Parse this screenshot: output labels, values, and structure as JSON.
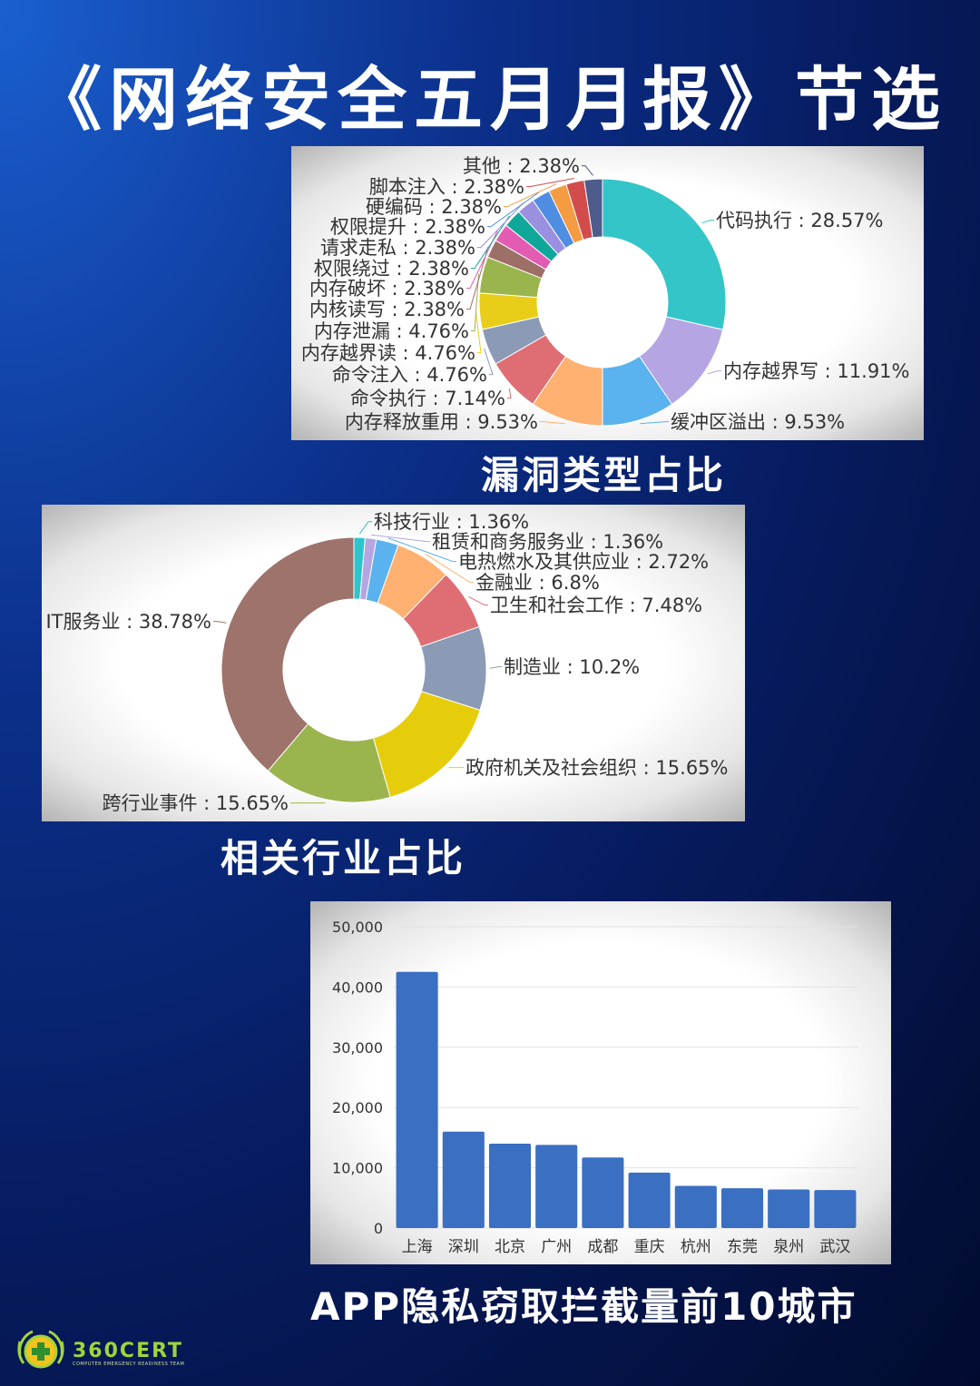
{
  "page": {
    "title": "《网络安全五月月报》节选"
  },
  "captions": {
    "vuln": "漏洞类型占比",
    "industry": "相关行业占比",
    "cities": "APP隐私窃取拦截量前10城市"
  },
  "logo": {
    "text": "360CERT",
    "sub": "COMPUTER EMERGENCY READINESS TEAM"
  },
  "chart_data": [
    {
      "type": "pie",
      "variant": "donut",
      "title": "漏洞类型占比",
      "slices": [
        {
          "label": "代码执行",
          "value": 28.57,
          "text": "代码执行 : 28.57%",
          "color": "#33c5c8"
        },
        {
          "label": "内存越界写",
          "value": 11.91,
          "text": "内存越界写 : 11.91%",
          "color": "#b6a5e3"
        },
        {
          "label": "缓冲区溢出",
          "value": 9.53,
          "text": "缓冲区溢出 : 9.53%",
          "color": "#5ab2ee"
        },
        {
          "label": "内存释放重用",
          "value": 9.53,
          "text": "内存释放重用 : 9.53%",
          "color": "#ffb172"
        },
        {
          "label": "命令执行",
          "value": 7.14,
          "text": "命令执行 : 7.14%",
          "color": "#df6e74"
        },
        {
          "label": "命令注入",
          "value": 4.76,
          "text": "命令注入 : 4.76%",
          "color": "#8b9ab5"
        },
        {
          "label": "内存越界读",
          "value": 4.76,
          "text": "内存越界读 : 4.76%",
          "color": "#e9ce19"
        },
        {
          "label": "内存泄漏",
          "value": 4.76,
          "text": "内存泄漏 : 4.76%",
          "color": "#9ab54e"
        },
        {
          "label": "内核读写",
          "value": 2.38,
          "text": "内核读写 : 2.38%",
          "color": "#9d6f66"
        },
        {
          "label": "内存破坏",
          "value": 2.38,
          "text": "内存破坏 : 2.38%",
          "color": "#e45bb2"
        },
        {
          "label": "权限绕过",
          "value": 2.38,
          "text": "权限绕过 : 2.38%",
          "color": "#0fa79a"
        },
        {
          "label": "请求走私",
          "value": 2.38,
          "text": "请求走私 : 2.38%",
          "color": "#9b8fe0"
        },
        {
          "label": "权限提升",
          "value": 2.38,
          "text": "权限提升 : 2.38%",
          "color": "#4f8de2"
        },
        {
          "label": "硬编码",
          "value": 2.38,
          "text": "硬编码 : 2.38%",
          "color": "#f59b42"
        },
        {
          "label": "脚本注入",
          "value": 2.38,
          "text": "脚本注入 : 2.38%",
          "color": "#d24c4c"
        },
        {
          "label": "其他",
          "value": 2.38,
          "text": "其他 : 2.38%",
          "color": "#4d5c8a"
        }
      ]
    },
    {
      "type": "pie",
      "variant": "donut",
      "title": "相关行业占比",
      "slices": [
        {
          "label": "科技行业",
          "value": 1.36,
          "text": "科技行业 : 1.36%",
          "color": "#2ec4cc"
        },
        {
          "label": "租赁和商务服务业",
          "value": 1.36,
          "text": "租赁和商务服务业 : 1.36%",
          "color": "#b6a5e3"
        },
        {
          "label": "电热燃水及其供应业",
          "value": 2.72,
          "text": "电热燃水及其供应业 : 2.72%",
          "color": "#5ab2ee"
        },
        {
          "label": "金融业",
          "value": 6.8,
          "text": "金融业 : 6.8%",
          "color": "#ffb172"
        },
        {
          "label": "卫生和社会工作",
          "value": 7.48,
          "text": "卫生和社会工作 : 7.48%",
          "color": "#df6e74"
        },
        {
          "label": "制造业",
          "value": 10.2,
          "text": "制造业 : 10.2%",
          "color": "#8b9ab5"
        },
        {
          "label": "政府机关及社会组织",
          "value": 15.65,
          "text": "政府机关及社会组织 : 15.65%",
          "color": "#e6cd0c"
        },
        {
          "label": "跨行业事件",
          "value": 15.65,
          "text": "跨行业事件 : 15.65%",
          "color": "#9ab54e"
        },
        {
          "label": "IT服务业",
          "value": 38.78,
          "text": "IT服务业 : 38.78%",
          "color": "#9d736b"
        }
      ]
    },
    {
      "type": "bar",
      "title": "APP隐私窃取拦截量前10城市",
      "categories": [
        "上海",
        "深圳",
        "北京",
        "广州",
        "成都",
        "重庆",
        "杭州",
        "东莞",
        "泉州",
        "武汉"
      ],
      "values": [
        42500,
        16000,
        14000,
        13800,
        11700,
        9200,
        7000,
        6600,
        6400,
        6300
      ],
      "ylim": [
        0,
        50000
      ],
      "yticks": [
        "0",
        "10,000",
        "20,000",
        "30,000",
        "40,000",
        "50,000"
      ],
      "bar_color": "#3a6fc2",
      "grid": true
    }
  ]
}
